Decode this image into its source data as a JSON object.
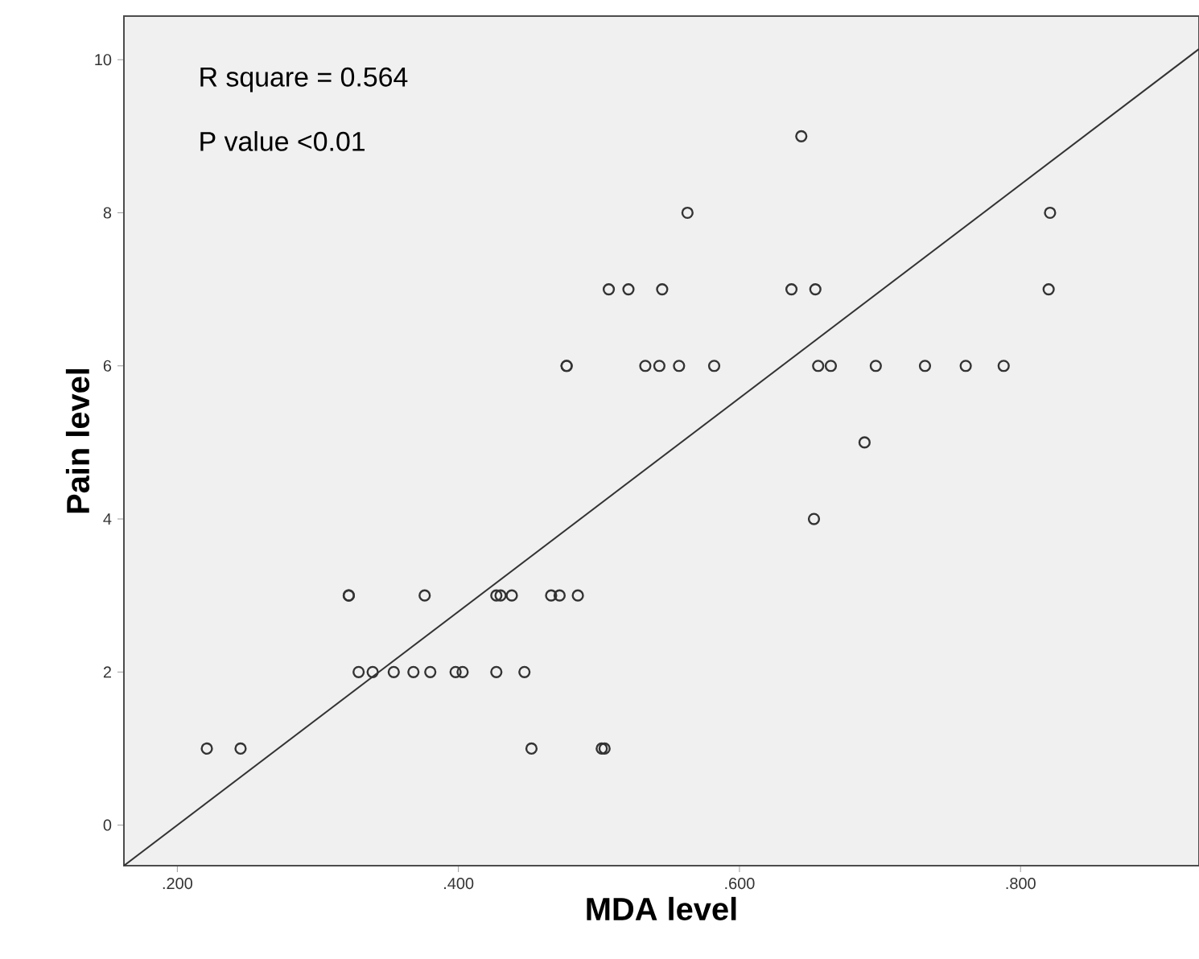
{
  "chart_data": {
    "type": "scatter",
    "xlabel": "MDA level",
    "ylabel": "Pain level",
    "annotations": [
      "R square = 0.564",
      "P value <0.01"
    ],
    "xlim": [
      0.162,
      0.927
    ],
    "ylim": [
      -0.53,
      10.57
    ],
    "xticks": [
      {
        "value": 0.2,
        "label": ".200"
      },
      {
        "value": 0.4,
        "label": ".400"
      },
      {
        "value": 0.6,
        "label": ".600"
      },
      {
        "value": 0.8,
        "label": ".800"
      }
    ],
    "yticks": [
      0,
      2,
      4,
      6,
      8,
      10
    ],
    "series": [
      {
        "marker": "circle",
        "color": "#333333",
        "x": [
          0.221,
          0.245,
          0.452,
          0.502,
          0.504,
          0.329,
          0.339,
          0.354,
          0.368,
          0.38,
          0.398,
          0.403,
          0.427,
          0.447,
          0.322,
          0.322,
          0.376,
          0.427,
          0.43,
          0.438,
          0.466,
          0.472,
          0.485,
          0.477,
          0.477,
          0.507,
          0.521,
          0.545,
          0.637,
          0.654,
          0.82,
          0.563,
          0.821,
          0.644,
          0.533,
          0.543,
          0.557,
          0.582,
          0.656,
          0.665,
          0.697,
          0.732,
          0.761,
          0.788,
          0.689,
          0.653
        ],
        "values": [
          1,
          1,
          1,
          1,
          1,
          2,
          2,
          2,
          2,
          2,
          2,
          2,
          2,
          2,
          3,
          3,
          3,
          3,
          3,
          3,
          3,
          3,
          3,
          6,
          6,
          7,
          7,
          7,
          7,
          7,
          7,
          8,
          8,
          9,
          6,
          6,
          6,
          6,
          6,
          6,
          6,
          6,
          6,
          6,
          5,
          4
        ]
      },
      {
        "type": "line",
        "marker": "none",
        "color": "#333333",
        "x": [
          0.162,
          0.927
        ],
        "values": [
          -0.53,
          10.14
        ]
      }
    ]
  }
}
